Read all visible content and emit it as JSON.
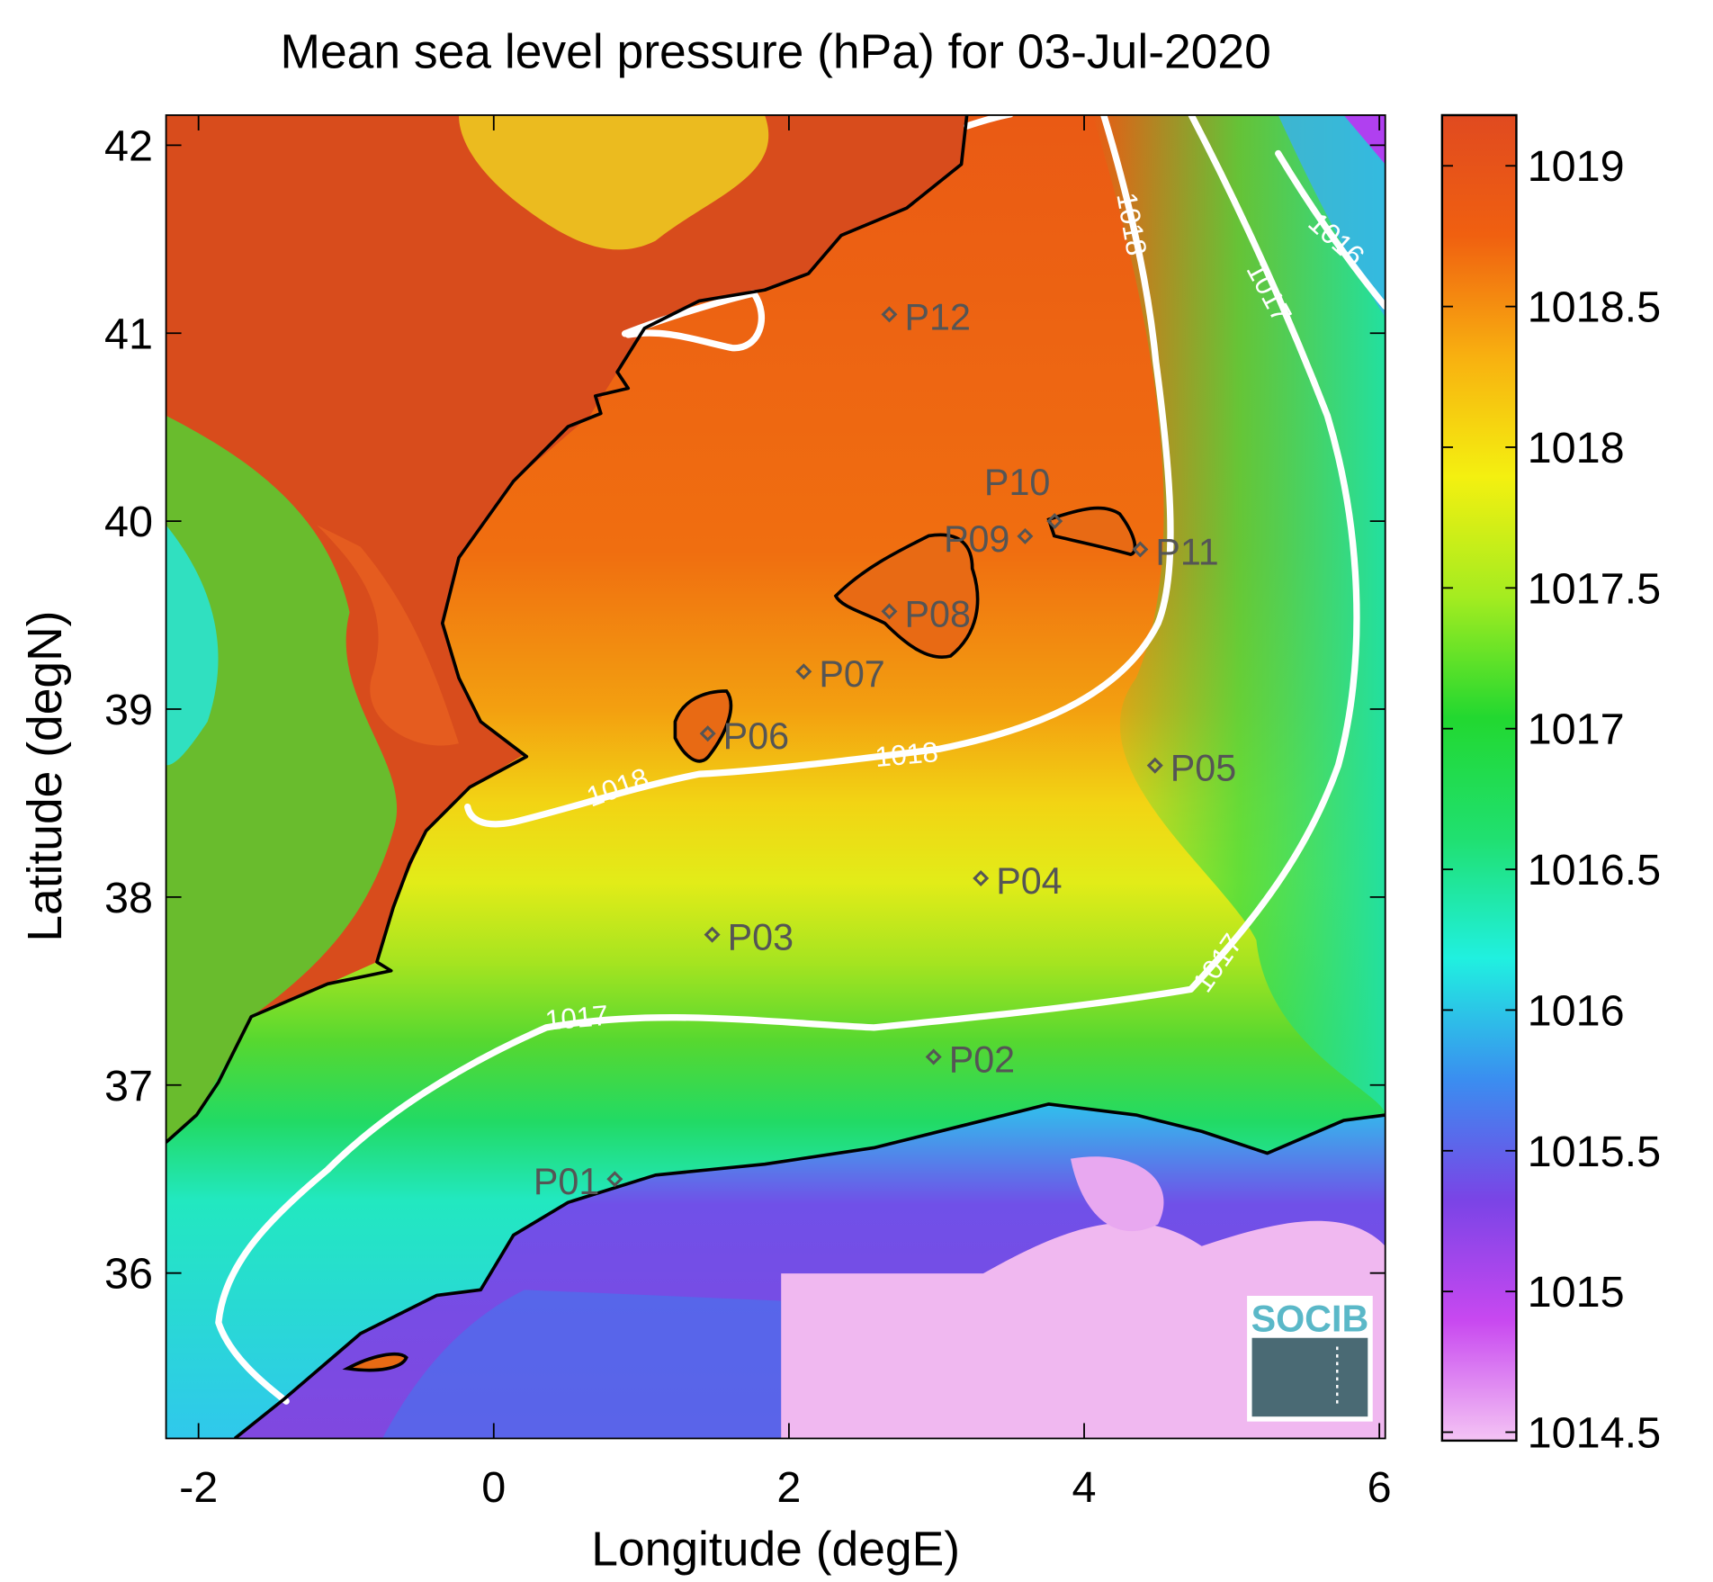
{
  "title": "Mean sea level pressure (hPa) for 03-Jul-2020",
  "x_axis": {
    "label": "Longitude (degE)",
    "lim": [
      -2.22,
      6.04
    ],
    "ticks": [
      -2,
      0,
      2,
      4,
      6
    ]
  },
  "y_axis": {
    "label": "Latitude (degN)",
    "lim": [
      35.12,
      42.16
    ],
    "ticks": [
      36,
      37,
      38,
      39,
      40,
      41,
      42
    ]
  },
  "colorbar": {
    "lim": [
      1014.47,
      1019.18
    ],
    "ticks": [
      1014.5,
      1015,
      1015.5,
      1016,
      1016.5,
      1017,
      1017.5,
      1018,
      1018.5,
      1019
    ],
    "colormap": [
      "#f4c4f4",
      "#c848f0",
      "#7a44e6",
      "#3a8ef0",
      "#20f0e0",
      "#20e070",
      "#22d830",
      "#a4ec20",
      "#f4f010",
      "#f8b010",
      "#f06010",
      "#e04a20"
    ]
  },
  "stations": [
    {
      "name": "P01",
      "lon": 0.82,
      "lat": 36.5
    },
    {
      "name": "P02",
      "lon": 2.98,
      "lat": 37.15
    },
    {
      "name": "P03",
      "lon": 1.48,
      "lat": 37.8
    },
    {
      "name": "P04",
      "lon": 3.3,
      "lat": 38.1
    },
    {
      "name": "P05",
      "lon": 4.48,
      "lat": 38.7
    },
    {
      "name": "P06",
      "lon": 1.45,
      "lat": 38.87
    },
    {
      "name": "P07",
      "lon": 2.1,
      "lat": 39.2
    },
    {
      "name": "P08",
      "lon": 2.68,
      "lat": 39.52
    },
    {
      "name": "P09",
      "lon": 3.6,
      "lat": 39.92
    },
    {
      "name": "P10",
      "lon": 3.8,
      "lat": 40.0
    },
    {
      "name": "P11",
      "lon": 4.38,
      "lat": 39.85
    },
    {
      "name": "P12",
      "lon": 2.68,
      "lat": 41.1
    }
  ],
  "contour_labels": [
    1018,
    1017,
    1016,
    1018,
    1018,
    1017,
    1017
  ],
  "logo": "SOCIB"
}
